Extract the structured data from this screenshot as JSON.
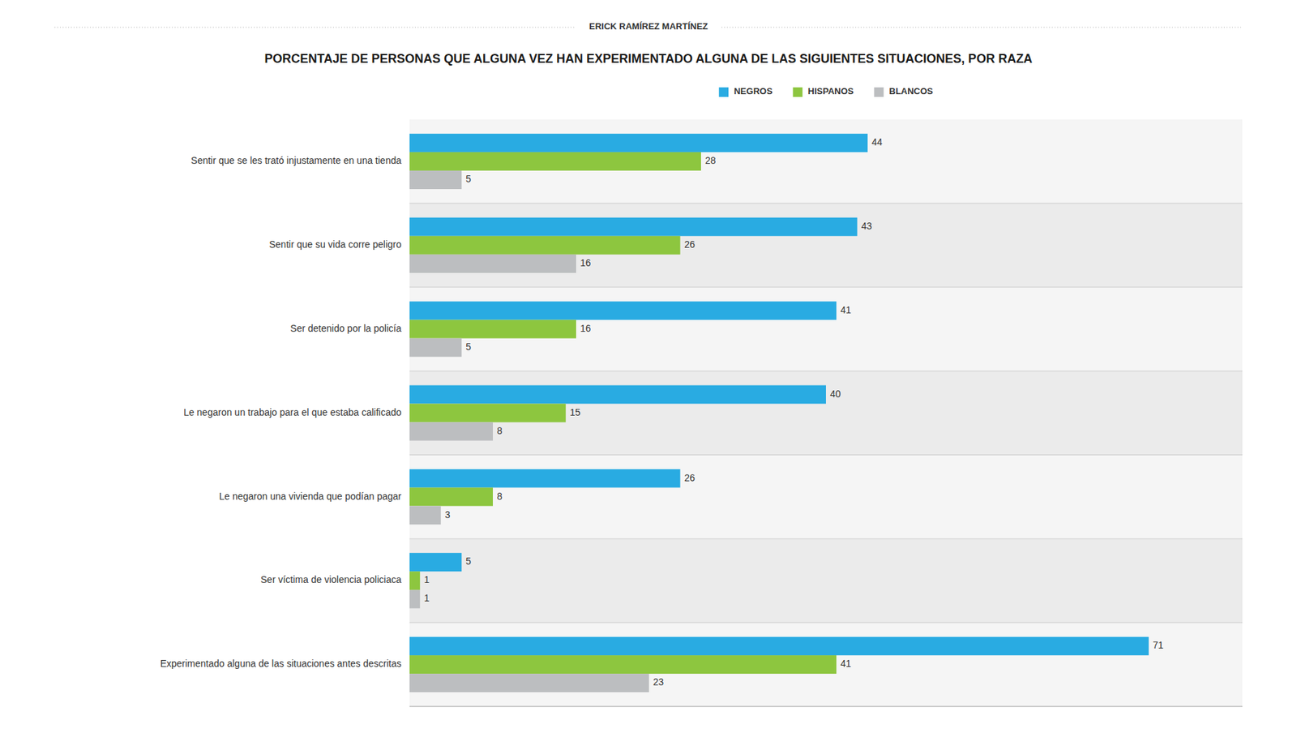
{
  "chart_data": {
    "type": "bar",
    "orientation": "horizontal",
    "title": "PORCENTAJE DE PERSONAS QUE ALGUNA VEZ HAN EXPERIMENTADO ALGUNA DE LAS SIGUIENTES SITUACIONES, POR RAZA",
    "subtitle": "ERICK RAMÍREZ MARTÍNEZ",
    "categories": [
      "Sentir que se les trató injustamente en una tienda",
      "Sentir que su vida corre peligro",
      "Ser detenido por la policía",
      "Le negaron un trabajo para el que estaba calificado",
      "Le negaron una vivienda que podían pagar",
      "Ser víctima de violencia policiaca",
      "Experimentado alguna de las situaciones antes descritas"
    ],
    "series": [
      {
        "name": "NEGROS",
        "color": "#29ABE2",
        "values": [
          44,
          43,
          41,
          40,
          26,
          5,
          71
        ]
      },
      {
        "name": "HISPANOS",
        "color": "#8DC63F",
        "values": [
          28,
          26,
          16,
          15,
          8,
          1,
          41
        ]
      },
      {
        "name": "BLANCOS",
        "color": "#BCBEC0",
        "values": [
          5,
          16,
          5,
          8,
          3,
          1,
          23
        ]
      }
    ],
    "xlim": [
      0,
      80
    ],
    "data_labels": true,
    "tick_labels": "y",
    "legend": "top",
    "grid": false
  }
}
